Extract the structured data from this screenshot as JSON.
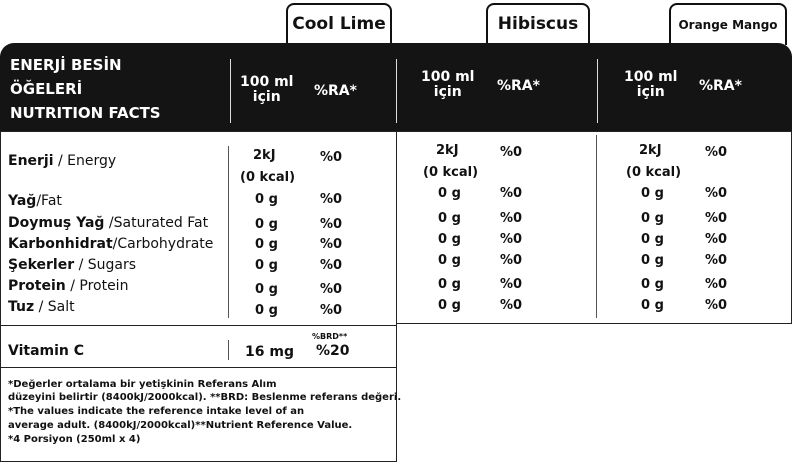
{
  "tabs": {
    "cool_lime": "Cool Lime",
    "hibiscus": "Hibiscus",
    "orange_mango": "Orange Mango"
  },
  "header": {
    "title_line1": "ENERJİ BESİN",
    "title_line2": "ÖĞELERİ",
    "title_line3": "NUTRITION FACTS",
    "per_line1": "100 ml",
    "per_line2": "için",
    "ra": "%RA*"
  },
  "rows": [
    {
      "tr": "Enerji",
      "en": " / Energy",
      "v1": "2kJ",
      "v1b": "(0 kcal)",
      "p": "%0"
    },
    {
      "tr": "Yağ",
      "en": "/Fat",
      "v": "0 g",
      "p": "%0"
    },
    {
      "tr": "Doymuş Yağ",
      "en": " /Saturated Fat",
      "v": "0 g",
      "p": "%0"
    },
    {
      "tr": "Karbonhidrat",
      "en": "/Carbohydrate",
      "v": "0 g",
      "p": "%0"
    },
    {
      "tr": "Şekerler",
      "en": " / Sugars",
      "v": "0 g",
      "p": "%0"
    },
    {
      "tr": "Protein",
      "en": " / Protein",
      "v": "0 g",
      "p": "%0"
    },
    {
      "tr": "Tuz",
      "en": " / Salt",
      "v": "0 g",
      "p": "%0"
    }
  ],
  "vitamin": {
    "label": "Vitamin C",
    "value": "16 mg",
    "brd_label": "%BRD**",
    "brd": "%20"
  },
  "footnotes": [
    "*Değerler ortalama bir yetişkinin Referans Alım",
    " düzeyini belirtir (8400kJ/2000kcal). **BRD: Beslenme referans değeri.",
    "*The values indicate the reference intake level of an",
    "average adult. (8400kJ/2000kcal)**Nutrient Reference Value.",
    "*4 Porsiyon (250ml x 4)"
  ]
}
